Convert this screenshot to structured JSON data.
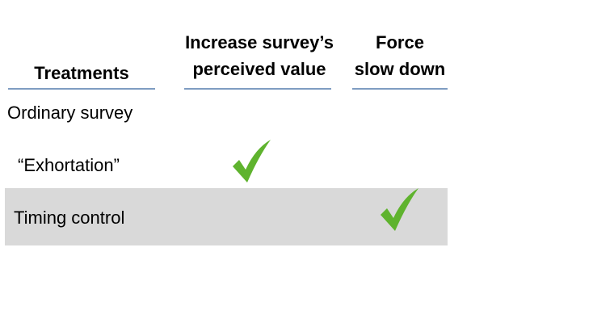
{
  "headers": {
    "treatments": "Treatments",
    "perceived_value_line1": "Increase survey’s",
    "perceived_value_line2": "perceived value",
    "slow_down_line1": "Force",
    "slow_down_line2": "slow down"
  },
  "rows": [
    {
      "label": "Ordinary survey",
      "perceived_value": false,
      "slow_down": false
    },
    {
      "label": "“Exhortation”",
      "perceived_value": true,
      "slow_down": false
    },
    {
      "label": "Timing control",
      "perceived_value": false,
      "slow_down": true,
      "highlighted": true
    }
  ],
  "colors": {
    "check": "#5fb32e",
    "header_rule": "#7f9cc2",
    "highlight_row": "#d9d9d9"
  },
  "icons": {
    "check": "checkmark-icon"
  }
}
